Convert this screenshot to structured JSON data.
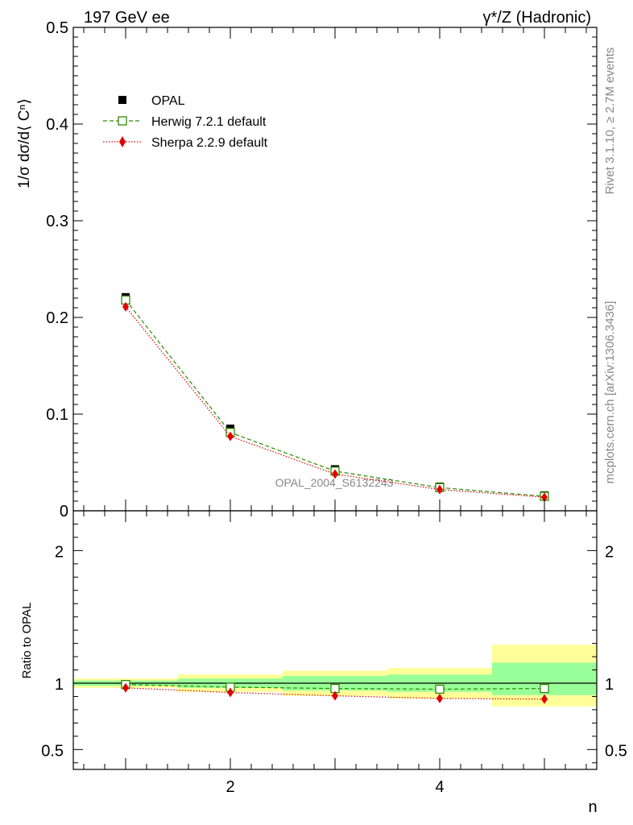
{
  "chart_data": {
    "type": "line",
    "title_left": "197 GeV ee",
    "title_right": "γ*/Z (Hadronic)",
    "ylabel_main": "1/σ dσ/d⟨ Cⁿ⟩",
    "ylabel_ratio": "Ratio to OPAL",
    "xlabel": "n",
    "analysis_label": "OPAL_2004_S6132243",
    "side_label_rivet": "Rivet 3.1.10, ≥ 2.7M events",
    "side_label_mcplots": "mcplots.cern.ch [arXiv:1306.3436]",
    "xlim": [
      0.5,
      5.5
    ],
    "ylim_main": [
      0,
      0.5
    ],
    "ylim_ratio": [
      0.35,
      2.3
    ],
    "x_ticks": [
      2,
      4
    ],
    "x_tick_labels": [
      "2",
      "4"
    ],
    "y_ticks_main": [
      0,
      0.1,
      0.2,
      0.3,
      0.4,
      0.5
    ],
    "y_tick_labels_main": [
      "0",
      "0.1",
      "0.2",
      "0.3",
      "0.4",
      "0.5"
    ],
    "y_ticks_ratio": [
      0.5,
      1,
      2
    ],
    "y_tick_labels_ratio": [
      "0.5",
      "1",
      "2"
    ],
    "x": [
      1,
      2,
      3,
      4,
      5
    ],
    "bin_edges": [
      0.5,
      1.5,
      2.5,
      3.5,
      4.5,
      5.5
    ],
    "series": [
      {
        "name": "OPAL",
        "label": "OPAL",
        "color": "#000000",
        "marker": "square-filled",
        "values": [
          0.221,
          0.085,
          0.043,
          0.025,
          0.016
        ]
      },
      {
        "name": "Herwig",
        "label": "Herwig 7.2.1 default",
        "color": "#2e8b00",
        "marker": "square-open",
        "line": "dashed",
        "values": [
          0.218,
          0.081,
          0.041,
          0.024,
          0.015
        ],
        "ratio": [
          0.99,
          0.97,
          0.96,
          0.955,
          0.96
        ]
      },
      {
        "name": "Sherpa",
        "label": "Sherpa 2.2.9 default",
        "color": "#e00000",
        "marker": "diamond-filled",
        "line": "dotted",
        "values": [
          0.211,
          0.077,
          0.038,
          0.022,
          0.014
        ],
        "ratio": [
          0.965,
          0.93,
          0.905,
          0.885,
          0.88
        ]
      }
    ],
    "ratio_band_green": [
      [
        0.98,
        1.02
      ],
      [
        0.965,
        1.035
      ],
      [
        0.945,
        1.055
      ],
      [
        0.935,
        1.065
      ],
      [
        0.91,
        1.155
      ]
    ],
    "ratio_band_yellow": [
      [
        0.965,
        1.035
      ],
      [
        0.935,
        1.065
      ],
      [
        0.905,
        1.095
      ],
      [
        0.885,
        1.115
      ],
      [
        0.825,
        1.29
      ]
    ],
    "colors": {
      "green_band": "#99ff99",
      "yellow_band": "#ffff99",
      "grey_text": "#888888"
    }
  }
}
